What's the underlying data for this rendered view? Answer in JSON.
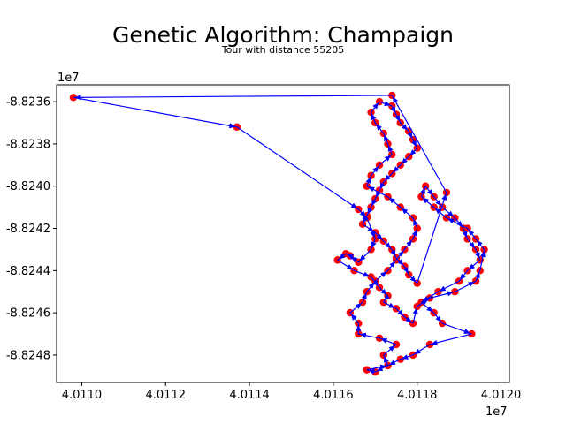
{
  "chart_data": {
    "type": "line",
    "title": "Genetic Algorithm: Champaign",
    "subtitle": "Tour with distance 55205",
    "x_offset_label": "1e7",
    "y_offset_label": "1e7",
    "xlim": [
      40109.4,
      40120.2
    ],
    "ylim": [
      -8824.93,
      -8823.52
    ],
    "x_ticks": [
      {
        "value": 40110,
        "label": "4.0110"
      },
      {
        "value": 40112,
        "label": "4.0112"
      },
      {
        "value": 40114,
        "label": "4.0114"
      },
      {
        "value": 40116,
        "label": "4.0116"
      },
      {
        "value": 40118,
        "label": "4.0118"
      },
      {
        "value": 40120,
        "label": "4.0120"
      }
    ],
    "y_ticks": [
      {
        "value": -8823.6,
        "label": "-8.8236"
      },
      {
        "value": -8823.8,
        "label": "-8.8238"
      },
      {
        "value": -8824.0,
        "label": "-8.8240"
      },
      {
        "value": -8824.2,
        "label": "-8.8242"
      },
      {
        "value": -8824.4,
        "label": "-8.8244"
      },
      {
        "value": -8824.6,
        "label": "-8.8246"
      },
      {
        "value": -8824.8,
        "label": "-8.8248"
      }
    ],
    "point_color": "#ff0000",
    "line_color": "#0000ff",
    "series": [
      {
        "x": [
          40109.8,
          40113.7,
          40116.6,
          40116.8,
          40117.0,
          40116.9,
          40116.6,
          40116.4,
          40116.3,
          40116.1,
          40116.5,
          40116.9,
          40117.1,
          40117.3,
          40117.2,
          40117.5,
          40117.7,
          40117.9,
          40118.0,
          40118.3,
          40118.9,
          40119.4,
          40119.5,
          40119.6,
          40119.4,
          40119.2,
          40118.7,
          40118.4,
          40118.1,
          40118.2,
          40118.4,
          40118.6,
          40118.9,
          40119.1,
          40119.2,
          40119.4,
          40119.5,
          40119.2,
          40119.0,
          40118.5,
          40118.1,
          40118.4,
          40118.6,
          40119.3,
          40118.3,
          40117.9,
          40117.6,
          40117.3,
          40117.0,
          40116.8,
          40117.3,
          40117.2,
          40117.5,
          40117.1,
          40116.6,
          40116.6,
          40116.4,
          40116.7,
          40116.8,
          40117.0,
          40117.3,
          40117.5,
          40117.7,
          40117.9,
          40118.0,
          40117.9,
          40117.6,
          40117.3,
          40116.8,
          40116.9,
          40117.1,
          40117.4,
          40117.3,
          40117.2,
          40117.0,
          40116.9,
          40117.1,
          40117.4,
          40117.5,
          40117.6,
          40117.8,
          40117.9,
          40118.0,
          40117.8,
          40117.6,
          40117.4,
          40117.2,
          40117.1,
          40117.0,
          40116.9,
          40116.8,
          40116.7,
          40117.0,
          40117.2,
          40117.4,
          40117.5,
          40117.7,
          40117.8,
          40118.0,
          40118.7,
          40117.4
        ],
        "y": [
          -8823.58,
          -8823.72,
          -8824.11,
          -8824.15,
          -8824.25,
          -8824.3,
          -8824.36,
          -8824.33,
          -8824.32,
          -8824.35,
          -8824.4,
          -8824.43,
          -8824.48,
          -8824.52,
          -8824.55,
          -8824.58,
          -8824.62,
          -8824.65,
          -8824.57,
          -8824.53,
          -8824.5,
          -8824.45,
          -8824.4,
          -8824.3,
          -8824.25,
          -8824.2,
          -8824.15,
          -8824.1,
          -8824.05,
          -8824.0,
          -8824.05,
          -8824.1,
          -8824.15,
          -8824.2,
          -8824.25,
          -8824.3,
          -8824.35,
          -8824.4,
          -8824.45,
          -8824.5,
          -8824.55,
          -8824.6,
          -8824.65,
          -8824.7,
          -8824.75,
          -8824.8,
          -8824.82,
          -8824.85,
          -8824.88,
          -8824.87,
          -8824.85,
          -8824.8,
          -8824.75,
          -8824.72,
          -8824.7,
          -8824.65,
          -8824.6,
          -8824.55,
          -8824.5,
          -8824.45,
          -8824.4,
          -8824.35,
          -8824.3,
          -8824.25,
          -8824.2,
          -8824.15,
          -8824.1,
          -8824.05,
          -8824.0,
          -8823.95,
          -8823.9,
          -8823.85,
          -8823.8,
          -8823.75,
          -8823.7,
          -8823.65,
          -8823.6,
          -8823.62,
          -8823.66,
          -8823.7,
          -8823.74,
          -8823.78,
          -8823.82,
          -8823.86,
          -8823.9,
          -8823.94,
          -8823.98,
          -8824.02,
          -8824.06,
          -8824.1,
          -8824.14,
          -8824.18,
          -8824.22,
          -8824.26,
          -8824.3,
          -8824.34,
          -8824.38,
          -8824.42,
          -8824.46,
          -8824.03,
          -8823.57
        ]
      }
    ],
    "grid": false
  }
}
